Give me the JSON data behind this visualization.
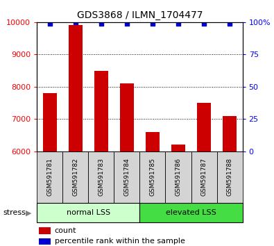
{
  "title": "GDS3868 / ILMN_1704477",
  "samples": [
    "GSM591781",
    "GSM591782",
    "GSM591783",
    "GSM591784",
    "GSM591785",
    "GSM591786",
    "GSM591787",
    "GSM591788"
  ],
  "counts": [
    7800,
    9920,
    8500,
    8100,
    6600,
    6200,
    7500,
    7100
  ],
  "percentile_ranks": [
    99,
    100,
    99,
    99,
    99,
    99,
    99,
    99
  ],
  "bar_color": "#cc0000",
  "dot_color": "#0000cc",
  "ylim_left": [
    6000,
    10000
  ],
  "ylim_right": [
    0,
    100
  ],
  "yticks_left": [
    6000,
    7000,
    8000,
    9000,
    10000
  ],
  "yticks_right": [
    0,
    25,
    50,
    75,
    100
  ],
  "groups": [
    {
      "label": "normal LSS",
      "start": 0,
      "end": 4,
      "color": "#ccffcc"
    },
    {
      "label": "elevated LSS",
      "start": 4,
      "end": 8,
      "color": "#44dd44"
    }
  ],
  "sample_box_color": "#d4d4d4",
  "stress_label": "stress",
  "legend_count_label": "count",
  "legend_pct_label": "percentile rank within the sample",
  "fig_width": 3.95,
  "fig_height": 3.54,
  "dpi": 100
}
